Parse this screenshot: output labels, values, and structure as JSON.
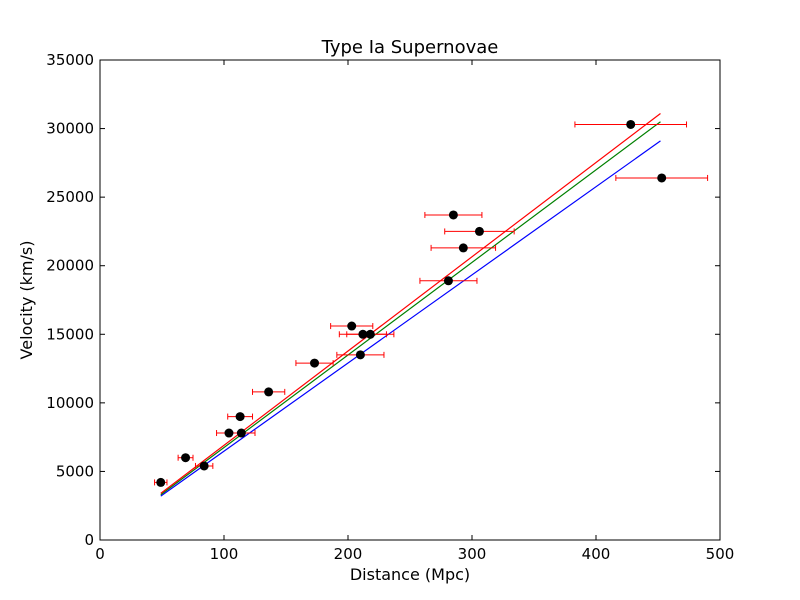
{
  "chart_data": {
    "type": "scatter",
    "title": "Type Ia Supernovae",
    "xlabel": "Distance (Mpc)",
    "ylabel": "Velocity (km/s)",
    "xlim": [
      0,
      500
    ],
    "ylim": [
      0,
      35000
    ],
    "x_ticks": [
      0,
      100,
      200,
      300,
      400,
      500
    ],
    "y_ticks": [
      0,
      5000,
      10000,
      15000,
      20000,
      25000,
      30000,
      35000
    ],
    "grid": false,
    "legend": "none",
    "points": {
      "marker_color": "#000000",
      "errorbar_color": "#ff0000",
      "data": [
        {
          "x": 49,
          "y": 4200,
          "xerr": 5
        },
        {
          "x": 69,
          "y": 6000,
          "xerr": 6
        },
        {
          "x": 84,
          "y": 5400,
          "xerr": 7
        },
        {
          "x": 104,
          "y": 7800,
          "xerr": 10
        },
        {
          "x": 114,
          "y": 7800,
          "xerr": 11
        },
        {
          "x": 113,
          "y": 9000,
          "xerr": 10
        },
        {
          "x": 136,
          "y": 10800,
          "xerr": 13
        },
        {
          "x": 173,
          "y": 12900,
          "xerr": 15
        },
        {
          "x": 203,
          "y": 15600,
          "xerr": 17
        },
        {
          "x": 212,
          "y": 15000,
          "xerr": 19
        },
        {
          "x": 218,
          "y": 15000,
          "xerr": 19
        },
        {
          "x": 210,
          "y": 13500,
          "xerr": 19
        },
        {
          "x": 281,
          "y": 18900,
          "xerr": 23
        },
        {
          "x": 285,
          "y": 23700,
          "xerr": 23
        },
        {
          "x": 293,
          "y": 21300,
          "xerr": 26
        },
        {
          "x": 306,
          "y": 22500,
          "xerr": 28
        },
        {
          "x": 428,
          "y": 30300,
          "xerr": 45
        },
        {
          "x": 453,
          "y": 26400,
          "xerr": 37
        }
      ]
    },
    "fit_lines": [
      {
        "color": "#0000ff",
        "x": [
          49,
          452
        ],
        "y": [
          3200,
          29100
        ]
      },
      {
        "color": "#008000",
        "x": [
          49,
          452
        ],
        "y": [
          3300,
          30500
        ]
      },
      {
        "color": "#ff0000",
        "x": [
          49,
          452
        ],
        "y": [
          3400,
          31100
        ]
      }
    ]
  }
}
